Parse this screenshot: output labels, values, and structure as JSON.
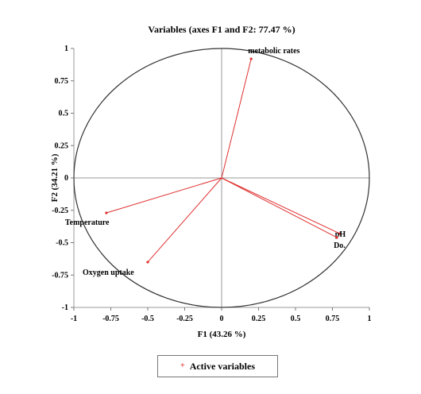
{
  "chart_data": {
    "type": "scatter",
    "subtype": "correlation-circle",
    "title": "Variables (axes F1 and F2: 77.47 %)",
    "xlabel": "F1 (43.26 %)",
    "ylabel": "F2 (34.21 %)",
    "xlim": [
      -1,
      1
    ],
    "ylim": [
      -1,
      1
    ],
    "xticks": [
      "-1",
      "-0.75",
      "-0.5",
      "-0.25",
      "0",
      "0.25",
      "0.5",
      "0.75",
      "1"
    ],
    "yticks": [
      "1",
      "0.75",
      "0.5",
      "0.25",
      "0",
      "-0.25",
      "-0.5",
      "-0.75",
      "-1"
    ],
    "grid": false,
    "legend_position": "bottom",
    "legend": [
      "Active variables"
    ],
    "series": [
      {
        "name": "Active variables",
        "color": "#e03030",
        "points": [
          {
            "label": "metabolic rates",
            "x": 0.2,
            "y": 0.92
          },
          {
            "label": "pH",
            "x": 0.8,
            "y": -0.43
          },
          {
            "label": "Do.",
            "x": 0.78,
            "y": -0.46
          },
          {
            "label": "Temperature",
            "x": -0.78,
            "y": -0.27
          },
          {
            "label": "Oxygen uptake",
            "x": -0.5,
            "y": -0.65
          }
        ]
      }
    ]
  }
}
